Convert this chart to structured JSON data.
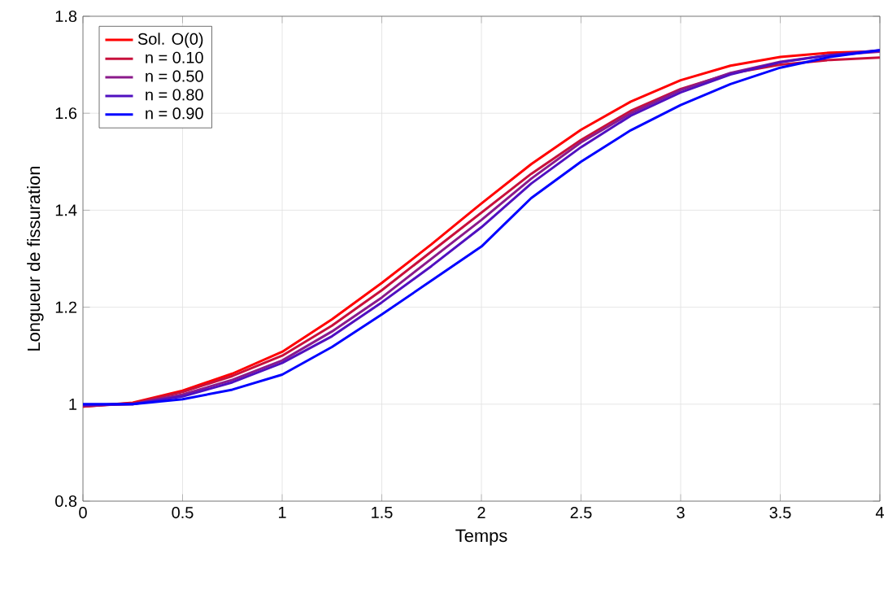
{
  "chart_data": {
    "type": "line",
    "xlabel": "Temps",
    "ylabel": "Longueur de fissuration",
    "x": [
      0,
      0.25,
      0.5,
      0.75,
      1,
      1.25,
      1.5,
      1.75,
      2,
      2.25,
      2.5,
      2.75,
      3,
      3.25,
      3.5,
      3.75,
      4
    ],
    "series": [
      {
        "name": "Sol. O(0)",
        "color": "#ff0000",
        "values": [
          0.995,
          1.003,
          1.028,
          1.063,
          1.108,
          1.175,
          1.25,
          1.33,
          1.414,
          1.495,
          1.566,
          1.624,
          1.668,
          1.698,
          1.716,
          1.725,
          1.728
        ]
      },
      {
        "name": "n = 0.10",
        "color": "#c8103c",
        "values": [
          0.995,
          1.002,
          1.025,
          1.058,
          1.1,
          1.162,
          1.235,
          1.315,
          1.395,
          1.475,
          1.545,
          1.605,
          1.65,
          1.682,
          1.7,
          1.71,
          1.715
        ]
      },
      {
        "name": "n = 0.50",
        "color": "#8b1a8b",
        "values": [
          0.997,
          1.0,
          1.02,
          1.05,
          1.09,
          1.15,
          1.22,
          1.3,
          1.38,
          1.465,
          1.54,
          1.6,
          1.648,
          1.683,
          1.706,
          1.72,
          1.727
        ]
      },
      {
        "name": "n = 0.80",
        "color": "#5010c0",
        "values": [
          0.998,
          1.0,
          1.016,
          1.045,
          1.085,
          1.14,
          1.21,
          1.285,
          1.365,
          1.455,
          1.53,
          1.595,
          1.643,
          1.68,
          1.705,
          1.72,
          1.73
        ]
      },
      {
        "name": "n = 0.90",
        "color": "#0000ff",
        "values": [
          1.0,
          1.0,
          1.01,
          1.03,
          1.061,
          1.118,
          1.185,
          1.255,
          1.325,
          1.425,
          1.5,
          1.565,
          1.617,
          1.66,
          1.694,
          1.716,
          1.73
        ]
      }
    ],
    "xlim": [
      0,
      4
    ],
    "ylim": [
      0.8,
      1.8
    ],
    "xticks": [
      0,
      0.5,
      1,
      1.5,
      2,
      2.5,
      3,
      3.5,
      4
    ],
    "yticks": [
      0.8,
      1,
      1.2,
      1.4,
      1.6,
      1.8
    ],
    "grid": true,
    "legend": "top left",
    "marker": "none",
    "line_style": "solid"
  }
}
